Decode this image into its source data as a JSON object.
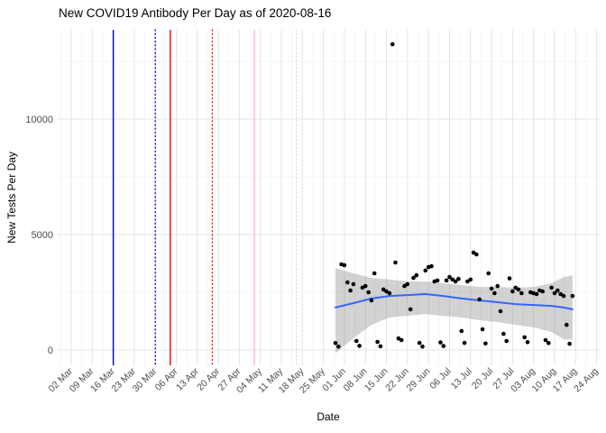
{
  "header": {
    "title": "New COVID19 Antibody Per Day as of 2020-08-16"
  },
  "chart_data": {
    "type": "scatter",
    "title": "New COVID19 Antibody Per Day as of 2020-08-16",
    "xlabel": "Date",
    "ylabel": "New Tests Per Day",
    "legend": "none",
    "grid": "major+minor",
    "background": "#FFFFFF",
    "y_ticks": [
      0,
      5000,
      10000
    ],
    "y_minor_ticks": [
      2500,
      7500,
      12500
    ],
    "ylim": [
      -660,
      13930
    ],
    "x_tick_interval_days": 7,
    "x_minor_interval_days": 3.5,
    "x_start_tick_date": "2020-03-02",
    "x_tick_labels": [
      "02 Mar",
      "09 Mar",
      "16 Mar",
      "23 Mar",
      "30 Mar",
      "06 Apr",
      "13 Apr",
      "20 Apr",
      "27 Apr",
      "04 May",
      "11 May",
      "18 May",
      "25 May",
      "01 Jun",
      "08 Jun",
      "15 Jun",
      "22 Jun",
      "29 Jun",
      "06 Jul",
      "13 Jul",
      "20 Jul",
      "27 Jul",
      "03 Aug",
      "10 Aug",
      "17 Aug",
      "24 Aug"
    ],
    "colors": {
      "point": "#000000",
      "smooth_line": "#3366FF",
      "band_fill": "#7F7F7F",
      "band_opacity": 0.35,
      "grid_major": "#E4E4E4",
      "grid_minor": "#F0F0F0",
      "axis_text": "#4D4D4D",
      "title_text": "#000000",
      "vline_blue": "#0000CC",
      "vline_red": "#EE0000",
      "vline_pink": "#FFB6C1"
    },
    "vlines": [
      {
        "date": "2020-03-16",
        "color": "#0000CC",
        "style": "solid"
      },
      {
        "date": "2020-03-30",
        "color": "#0000CC",
        "style": "dotted"
      },
      {
        "date": "2020-04-04",
        "color": "#EE0000",
        "style": "solid"
      },
      {
        "date": "2020-04-18",
        "color": "#EE0000",
        "style": "dotted"
      },
      {
        "date": "2020-05-02",
        "color": "#FFB6C1",
        "style": "solid"
      },
      {
        "date": "2020-05-16",
        "color": "#FFC9D2",
        "style": "dotted"
      }
    ],
    "points": [
      [
        "2020-05-29",
        300
      ],
      [
        "2020-05-30",
        150
      ],
      [
        "2020-05-31",
        3710
      ],
      [
        "2020-06-01",
        3670
      ],
      [
        "2020-06-02",
        2930
      ],
      [
        "2020-06-03",
        2580
      ],
      [
        "2020-06-04",
        2850
      ],
      [
        "2020-06-05",
        390
      ],
      [
        "2020-06-06",
        180
      ],
      [
        "2020-06-07",
        2700
      ],
      [
        "2020-06-08",
        2770
      ],
      [
        "2020-06-09",
        2500
      ],
      [
        "2020-06-10",
        2150
      ],
      [
        "2020-06-11",
        3320
      ],
      [
        "2020-06-12",
        350
      ],
      [
        "2020-06-13",
        160
      ],
      [
        "2020-06-14",
        2620
      ],
      [
        "2020-06-15",
        2540
      ],
      [
        "2020-06-16",
        2460
      ],
      [
        "2020-06-17",
        13240
      ],
      [
        "2020-06-18",
        3790
      ],
      [
        "2020-06-19",
        500
      ],
      [
        "2020-06-20",
        430
      ],
      [
        "2020-06-21",
        2770
      ],
      [
        "2020-06-22",
        2850
      ],
      [
        "2020-06-23",
        1760
      ],
      [
        "2020-06-24",
        3120
      ],
      [
        "2020-06-25",
        3240
      ],
      [
        "2020-06-26",
        310
      ],
      [
        "2020-06-27",
        150
      ],
      [
        "2020-06-28",
        3440
      ],
      [
        "2020-06-29",
        3590
      ],
      [
        "2020-06-30",
        3630
      ],
      [
        "2020-07-01",
        2970
      ],
      [
        "2020-07-02",
        3010
      ],
      [
        "2020-07-03",
        330
      ],
      [
        "2020-07-04",
        170
      ],
      [
        "2020-07-05",
        3010
      ],
      [
        "2020-07-06",
        3160
      ],
      [
        "2020-07-07",
        3050
      ],
      [
        "2020-07-08",
        2970
      ],
      [
        "2020-07-09",
        3080
      ],
      [
        "2020-07-10",
        820
      ],
      [
        "2020-07-11",
        310
      ],
      [
        "2020-07-12",
        2970
      ],
      [
        "2020-07-13",
        3050
      ],
      [
        "2020-07-14",
        4220
      ],
      [
        "2020-07-15",
        4140
      ],
      [
        "2020-07-16",
        2190
      ],
      [
        "2020-07-17",
        900
      ],
      [
        "2020-07-18",
        280
      ],
      [
        "2020-07-19",
        3320
      ],
      [
        "2020-07-20",
        2660
      ],
      [
        "2020-07-21",
        2460
      ],
      [
        "2020-07-22",
        2770
      ],
      [
        "2020-07-23",
        1680
      ],
      [
        "2020-07-24",
        700
      ],
      [
        "2020-07-25",
        390
      ],
      [
        "2020-07-26",
        3100
      ],
      [
        "2020-07-27",
        2540
      ],
      [
        "2020-07-28",
        2700
      ],
      [
        "2020-07-29",
        2620
      ],
      [
        "2020-07-30",
        2460
      ],
      [
        "2020-07-31",
        550
      ],
      [
        "2020-08-01",
        340
      ],
      [
        "2020-08-02",
        2500
      ],
      [
        "2020-08-03",
        2460
      ],
      [
        "2020-08-04",
        2420
      ],
      [
        "2020-08-05",
        2580
      ],
      [
        "2020-08-06",
        2540
      ],
      [
        "2020-08-07",
        430
      ],
      [
        "2020-08-08",
        300
      ],
      [
        "2020-08-09",
        2700
      ],
      [
        "2020-08-10",
        2460
      ],
      [
        "2020-08-11",
        2580
      ],
      [
        "2020-08-12",
        2420
      ],
      [
        "2020-08-13",
        2340
      ],
      [
        "2020-08-14",
        1090
      ],
      [
        "2020-08-15",
        270
      ],
      [
        "2020-08-16",
        2340
      ]
    ],
    "smooth_line": [
      [
        "2020-05-29",
        1840
      ],
      [
        "2020-06-04",
        2030
      ],
      [
        "2020-06-10",
        2230
      ],
      [
        "2020-06-16",
        2340
      ],
      [
        "2020-06-22",
        2380
      ],
      [
        "2020-06-28",
        2420
      ],
      [
        "2020-07-04",
        2340
      ],
      [
        "2020-07-10",
        2230
      ],
      [
        "2020-07-16",
        2150
      ],
      [
        "2020-07-22",
        2070
      ],
      [
        "2020-07-28",
        1990
      ],
      [
        "2020-08-03",
        1950
      ],
      [
        "2020-08-09",
        1910
      ],
      [
        "2020-08-13",
        1840
      ],
      [
        "2020-08-16",
        1760
      ]
    ],
    "confidence_band": [
      [
        "2020-05-29",
        3550,
        -150
      ],
      [
        "2020-06-04",
        3320,
        510
      ],
      [
        "2020-06-10",
        3120,
        1090
      ],
      [
        "2020-06-16",
        3050,
        1410
      ],
      [
        "2020-06-22",
        2970,
        1480
      ],
      [
        "2020-06-28",
        2970,
        1560
      ],
      [
        "2020-07-04",
        2890,
        1480
      ],
      [
        "2020-07-10",
        2810,
        1410
      ],
      [
        "2020-07-16",
        2730,
        1290
      ],
      [
        "2020-07-22",
        2730,
        1210
      ],
      [
        "2020-07-28",
        2700,
        1090
      ],
      [
        "2020-08-03",
        2730,
        980
      ],
      [
        "2020-08-09",
        2890,
        780
      ],
      [
        "2020-08-13",
        3160,
        470
      ],
      [
        "2020-08-16",
        3240,
        450
      ]
    ]
  }
}
